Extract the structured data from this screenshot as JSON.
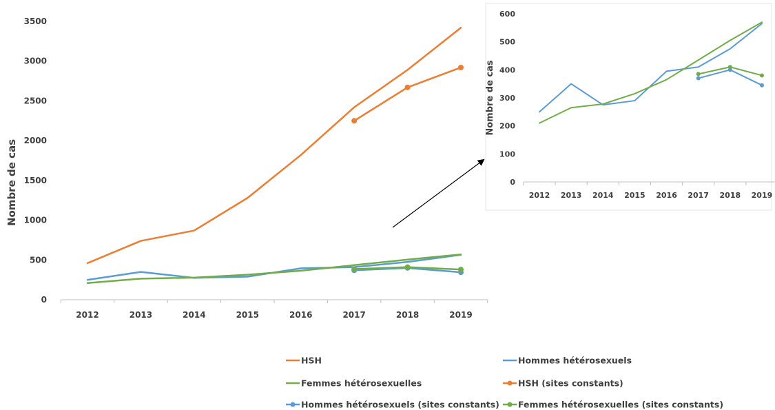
{
  "chart_data": [
    {
      "type": "line",
      "panel": "main",
      "ylabel": "Nombre de cas",
      "xlabel": "",
      "title": "",
      "x": [
        "2012",
        "2013",
        "2014",
        "2015",
        "2016",
        "2017",
        "2018",
        "2019"
      ],
      "yticks": [
        "0",
        "500",
        "1000",
        "1500",
        "2000",
        "2500",
        "3000",
        "3500"
      ],
      "ylim": [
        0,
        3500
      ],
      "grid": false,
      "series": [
        {
          "name": "HSH",
          "color": "#ED7D31",
          "markers": false,
          "values": [
            460,
            740,
            870,
            1280,
            1820,
            2420,
            2890,
            3420
          ]
        },
        {
          "name": "Hommes hétérosexuels",
          "color": "#5B9BD5",
          "markers": false,
          "values": [
            250,
            350,
            275,
            290,
            395,
            410,
            475,
            565
          ]
        },
        {
          "name": "Femmes hétérosexuelles",
          "color": "#70AD47",
          "markers": false,
          "values": [
            210,
            265,
            278,
            315,
            365,
            435,
            505,
            570
          ]
        },
        {
          "name": "HSH (sites constants)",
          "color": "#ED7D31",
          "markers": true,
          "values": [
            null,
            null,
            null,
            null,
            null,
            2250,
            2670,
            2920
          ]
        },
        {
          "name": "Hommes hétérosexuels (sites constants)",
          "color": "#5B9BD5",
          "markers": true,
          "values": [
            null,
            null,
            null,
            null,
            null,
            370,
            400,
            345
          ]
        },
        {
          "name": "Femmes hétérosexuelles (sites constants)",
          "color": "#70AD47",
          "markers": true,
          "values": [
            null,
            null,
            null,
            null,
            null,
            385,
            410,
            380
          ]
        }
      ]
    },
    {
      "type": "line",
      "panel": "inset",
      "ylabel": "Nombre de cas",
      "xlabel": "",
      "title": "",
      "x": [
        "2012",
        "2013",
        "2014",
        "2015",
        "2016",
        "2017",
        "2018",
        "2019"
      ],
      "yticks": [
        "0",
        "100",
        "200",
        "300",
        "400",
        "500",
        "600"
      ],
      "ylim": [
        0,
        600
      ],
      "grid": false,
      "series": [
        {
          "name": "Hommes hétérosexuels",
          "color": "#5B9BD5",
          "markers": false,
          "values": [
            250,
            350,
            275,
            290,
            395,
            410,
            475,
            565
          ]
        },
        {
          "name": "Femmes hétérosexuelles",
          "color": "#70AD47",
          "markers": false,
          "values": [
            210,
            265,
            278,
            315,
            365,
            435,
            505,
            570
          ]
        },
        {
          "name": "Hommes hétérosexuels (sites constants)",
          "color": "#5B9BD5",
          "markers": true,
          "values": [
            null,
            null,
            null,
            null,
            null,
            370,
            400,
            345
          ]
        },
        {
          "name": "Femmes hétérosexuelles (sites constants)",
          "color": "#70AD47",
          "markers": true,
          "values": [
            null,
            null,
            null,
            null,
            null,
            385,
            410,
            380
          ]
        }
      ]
    }
  ],
  "legend": {
    "placement": "bottom",
    "items": [
      {
        "label": "HSH",
        "color": "#ED7D31",
        "marker": false
      },
      {
        "label": "Hommes hétérosexuels",
        "color": "#5B9BD5",
        "marker": false
      },
      {
        "label": "Femmes hétérosexuelles",
        "color": "#70AD47",
        "marker": false
      },
      {
        "label": "HSH (sites constants)",
        "color": "#ED7D31",
        "marker": true
      },
      {
        "label": "Hommes hétérosexuels (sites constants)",
        "color": "#5B9BD5",
        "marker": true
      },
      {
        "label": "Femmes hétérosexuelles (sites constants)",
        "color": "#70AD47",
        "marker": true
      }
    ]
  },
  "annotation": {
    "arrow": "main-to-inset"
  }
}
